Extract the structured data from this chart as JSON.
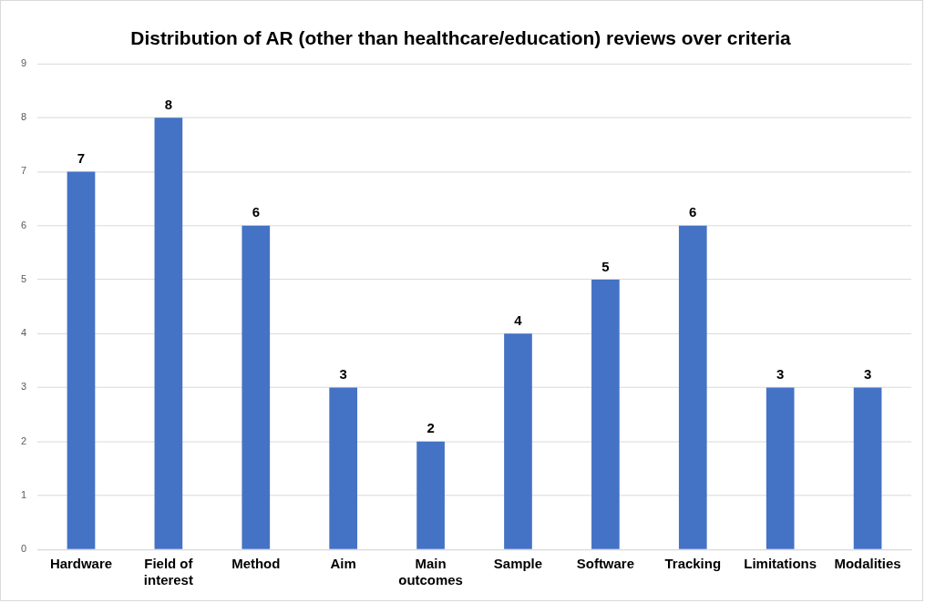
{
  "chart_data": {
    "type": "bar",
    "title": "Distribution of AR (other than healthcare/education) reviews over criteria",
    "categories": [
      "Hardware",
      "Field of interest",
      "Method",
      "Aim",
      "Main outcomes",
      "Sample",
      "Software",
      "Tracking",
      "Limitations",
      "Modalities"
    ],
    "values": [
      7,
      8,
      6,
      3,
      2,
      4,
      5,
      6,
      3,
      3
    ],
    "color": "#4472c4",
    "ylim": [
      0,
      9
    ],
    "yticks": [
      0,
      1,
      2,
      3,
      4,
      5,
      6,
      7,
      8,
      9
    ],
    "grid": "y",
    "legend": false,
    "data_labels": true
  }
}
